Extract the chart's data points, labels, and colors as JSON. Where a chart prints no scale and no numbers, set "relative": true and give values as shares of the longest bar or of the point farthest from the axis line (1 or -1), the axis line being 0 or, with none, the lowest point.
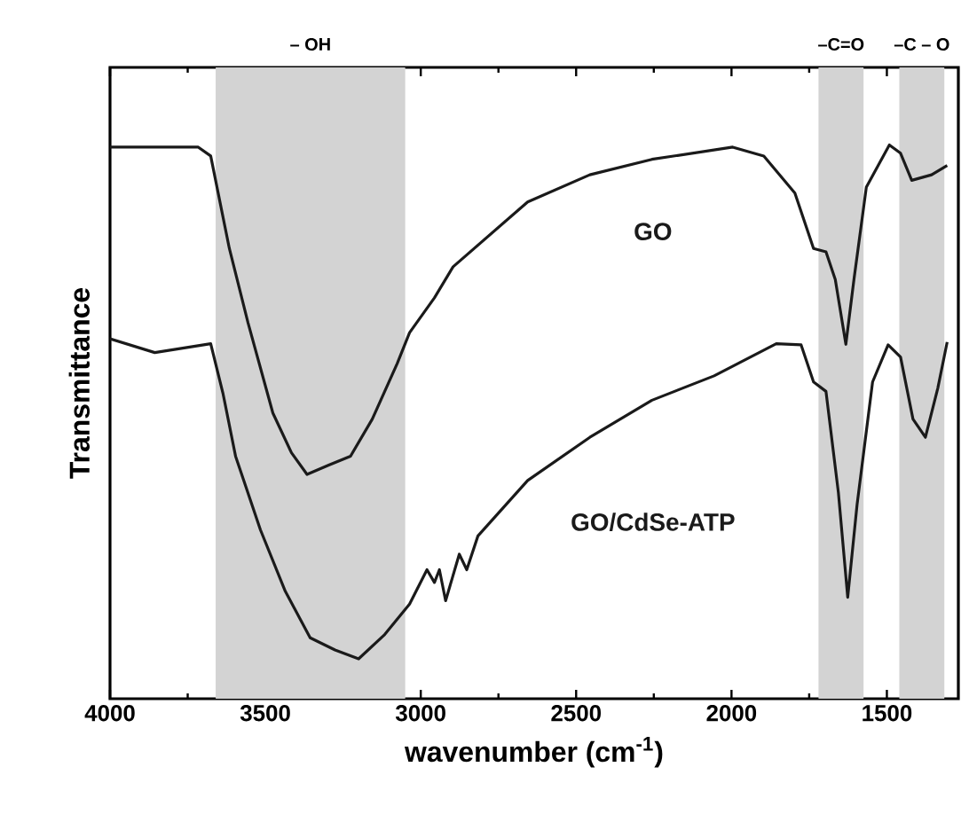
{
  "chart_data": {
    "type": "line",
    "relative": true,
    "xlabel": "wavenumber (cm$^{-1}$)",
    "ylabel": "Transmittance",
    "xlim": [
      4000,
      1270
    ],
    "xticks": [
      4000,
      3500,
      3000,
      2500,
      2000,
      1500
    ],
    "legend": false,
    "grid": false,
    "marker": "none",
    "line_style": "solid",
    "bands": [
      {
        "axis": "x",
        "from": 3660,
        "to": 3050,
        "label": "– OH",
        "color": "#d3d3d3"
      },
      {
        "axis": "x",
        "from": 1720,
        "to": 1575,
        "label": "–C=O",
        "color": "#d3d3d3"
      },
      {
        "axis": "x",
        "from": 1460,
        "to": 1315,
        "label": "–C – O",
        "color": "#d3d3d3"
      }
    ],
    "series": [
      {
        "name": "GO",
        "color": "#1a1a1a",
        "x": [
          4000,
          3716,
          3676,
          3616,
          3556,
          3476,
          3416,
          3366,
          3296,
          3226,
          3156,
          3076,
          3036,
          2956,
          2896,
          2816,
          2656,
          2456,
          2256,
          1996,
          1896,
          1796,
          1736,
          1696,
          1666,
          1632,
          1606,
          1566,
          1492,
          1456,
          1420,
          1356,
          1306
        ],
        "values": [
          0.996,
          0.996,
          0.98,
          0.813,
          0.679,
          0.516,
          0.444,
          0.405,
          0.422,
          0.438,
          0.505,
          0.605,
          0.661,
          0.724,
          0.78,
          0.819,
          0.897,
          0.946,
          0.974,
          0.996,
          0.98,
          0.913,
          0.813,
          0.807,
          0.757,
          0.64,
          0.757,
          0.924,
          1.0,
          0.985,
          0.936,
          0.946,
          0.963
        ]
      },
      {
        "name": "GO/CdSe-ATP",
        "color": "#1a1a1a",
        "x": [
          4000,
          3856,
          3676,
          3636,
          3596,
          3516,
          3436,
          3356,
          3276,
          3200,
          3116,
          3036,
          2980,
          2956,
          2940,
          2920,
          2876,
          2852,
          2816,
          2656,
          2456,
          2256,
          2056,
          1856,
          1776,
          1736,
          1696,
          1656,
          1626,
          1596,
          1546,
          1496,
          1456,
          1416,
          1376,
          1336,
          1306
        ],
        "values": [
          0.65,
          0.625,
          0.641,
          0.55,
          0.438,
          0.305,
          0.194,
          0.11,
          0.088,
          0.072,
          0.116,
          0.171,
          0.233,
          0.21,
          0.233,
          0.177,
          0.261,
          0.233,
          0.294,
          0.394,
          0.472,
          0.539,
          0.583,
          0.641,
          0.639,
          0.572,
          0.555,
          0.372,
          0.183,
          0.35,
          0.572,
          0.639,
          0.617,
          0.505,
          0.472,
          0.561,
          0.644
        ]
      }
    ]
  }
}
